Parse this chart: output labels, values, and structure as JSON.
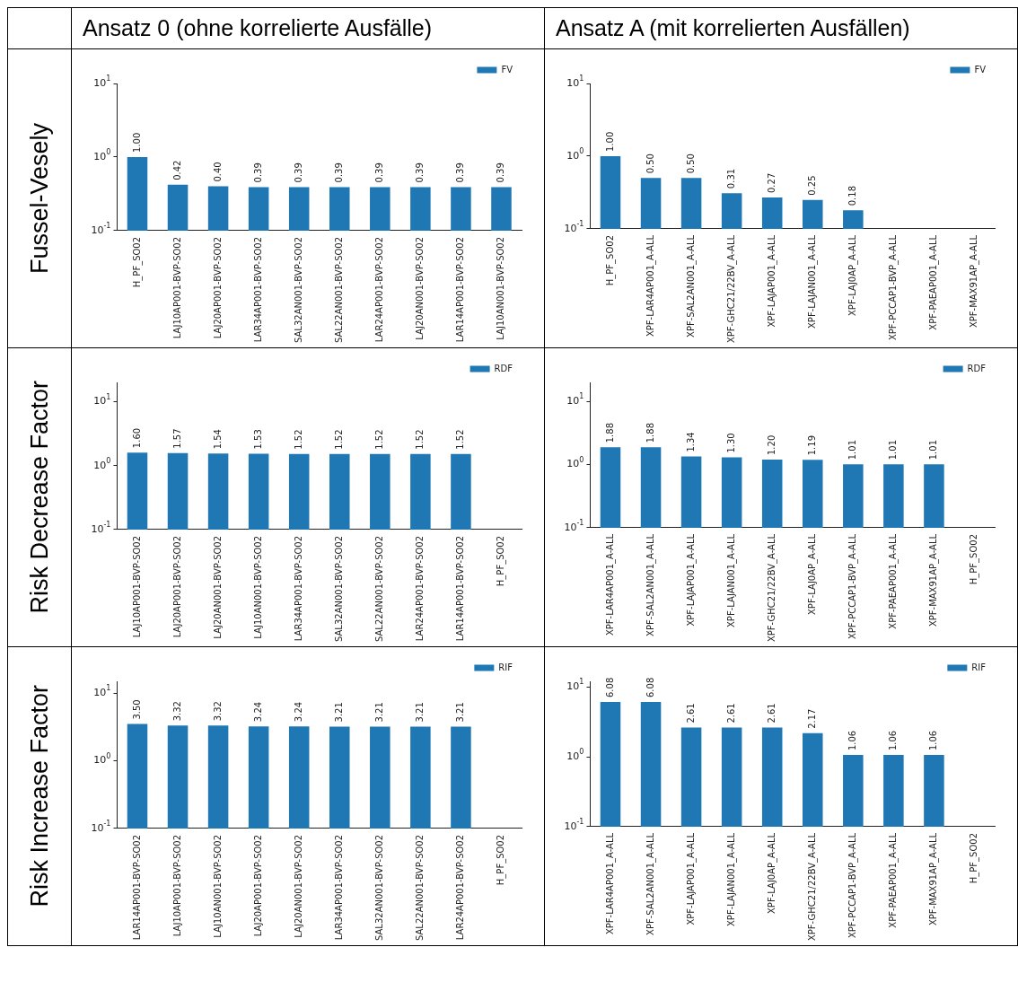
{
  "chart_data": [
    {
      "type": "bar",
      "title": "Ansatz 0 (ohne korrelierte Ausfälle)",
      "ylabel": "Fussel-Vesely",
      "categories": [
        "H_PF_SO02",
        "LAJ10AP001-BVP-SO02",
        "LAJ20AP001-BVP-SO02",
        "LAR34AP001-BVP-SO02",
        "SAL32AN001-BVP-SO02",
        "SAL22AN001-BVP-SO02",
        "LAR24AP001-BVP-SO02",
        "LAJ20AN001-BVP-SO02",
        "LAR14AP001-BVP-SO02",
        "LAJ10AN001-BVP-SO02"
      ],
      "series": [
        {
          "name": "FV",
          "color": "#1f77b4",
          "values": [
            1.0,
            0.42,
            0.4,
            0.39,
            0.39,
            0.39,
            0.39,
            0.39,
            0.39,
            0.39
          ],
          "value_labels": [
            "1.00",
            "0.42",
            "0.40",
            "0.39",
            "0.39",
            "0.39",
            "0.39",
            "0.39",
            "0.39",
            "0.39"
          ]
        }
      ],
      "log": true,
      "ylim": [
        0.1,
        10
      ],
      "yticks": [
        {
          "value": 0.1,
          "label": "10$^{-1}$"
        },
        {
          "value": 1,
          "label": "10$^{0}$"
        },
        {
          "value": 10,
          "label": "10$^{1}$"
        }
      ],
      "legend": "top right",
      "grid": false
    },
    {
      "type": "bar",
      "title": "Ansatz A (mit korrelierten Ausfällen)",
      "categories": [
        "H_PF_SO02",
        "XPF-LAR4AP001_A-ALL",
        "XPF-SAL2AN001_A-ALL",
        "XPF-GHC21/22BV_A-ALL",
        "XPF-LAJAP001_A-ALL",
        "XPF-LAJAN001_A-ALL",
        "XPF-LAJ0AP_A-ALL",
        "XPF-PCCAP1-BVP_A-ALL",
        "XPF-PAEAP001_A-ALL",
        "XPF-MAX91AP_A-ALL"
      ],
      "series": [
        {
          "name": "FV",
          "color": "#1f77b4",
          "values": [
            1.0,
            0.5,
            0.5,
            0.31,
            0.27,
            0.25,
            0.18,
            null,
            null,
            null
          ],
          "value_labels": [
            "1.00",
            "0.50",
            "0.50",
            "0.31",
            "0.27",
            "0.25",
            "0.18",
            null,
            null,
            null
          ]
        }
      ],
      "log": true,
      "ylim": [
        0.1,
        10
      ],
      "yticks": [
        {
          "value": 0.1,
          "label": "10$^{-1}$"
        },
        {
          "value": 1,
          "label": "10$^{0}$"
        },
        {
          "value": 10,
          "label": "10$^{1}$"
        }
      ],
      "legend": "top right",
      "grid": false
    },
    {
      "type": "bar",
      "ylabel": "Risk Decrease Factor",
      "categories": [
        "LAJ10AP001-BVP-SO02",
        "LAJ20AP001-BVP-SO02",
        "LAJ20AN001-BVP-SO02",
        "LAJ10AN001-BVP-SO02",
        "LAR34AP001-BVP-SO02",
        "SAL32AN001-BVP-SO02",
        "SAL22AN001-BVP-SO02",
        "LAR24AP001-BVP-SO02",
        "LAR14AP001-BVP-SO02",
        "H_PF_SO02"
      ],
      "series": [
        {
          "name": "RDF",
          "color": "#1f77b4",
          "values": [
            1.6,
            1.57,
            1.54,
            1.53,
            1.52,
            1.52,
            1.52,
            1.52,
            1.52,
            null
          ],
          "value_labels": [
            "1.60",
            "1.57",
            "1.54",
            "1.53",
            "1.52",
            "1.52",
            "1.52",
            "1.52",
            "1.52",
            null
          ]
        }
      ],
      "log": true,
      "ylim": [
        0.1,
        20
      ],
      "yticks": [
        {
          "value": 0.1,
          "label": "10$^{-1}$"
        },
        {
          "value": 1,
          "label": "10$^{0}$"
        },
        {
          "value": 10,
          "label": "10$^{1}$"
        }
      ],
      "legend": "top right",
      "grid": false
    },
    {
      "type": "bar",
      "categories": [
        "XPF-LAR4AP001_A-ALL",
        "XPF-SAL2AN001_A-ALL",
        "XPF-LAJAP001_A-ALL",
        "XPF-LAJAN001_A-ALL",
        "XPF-GHC21/22BV_A-ALL",
        "XPF-LAJ0AP_A-ALL",
        "XPF-PCCAP1-BVP_A-ALL",
        "XPF-PAEAP001_A-ALL",
        "XPF-MAX91AP_A-ALL",
        "H_PF_SO02"
      ],
      "series": [
        {
          "name": "RDF",
          "color": "#1f77b4",
          "values": [
            1.88,
            1.88,
            1.34,
            1.3,
            1.2,
            1.19,
            1.01,
            1.01,
            1.01,
            null
          ],
          "value_labels": [
            "1.88",
            "1.88",
            "1.34",
            "1.30",
            "1.20",
            "1.19",
            "1.01",
            "1.01",
            "1.01",
            null
          ]
        }
      ],
      "log": true,
      "ylim": [
        0.1,
        20
      ],
      "yticks": [
        {
          "value": 0.1,
          "label": "10$^{-1}$"
        },
        {
          "value": 1,
          "label": "10$^{0}$"
        },
        {
          "value": 10,
          "label": "10$^{1}$"
        }
      ],
      "legend": "top right",
      "grid": false
    },
    {
      "type": "bar",
      "ylabel": "Risk Increase Factor",
      "categories": [
        "LAR14AP001-BVP-SO02",
        "LAJ10AP001-BVP-SO02",
        "LAJ10AN001-BVP-SO02",
        "LAJ20AP001-BVP-SO02",
        "LAJ20AN001-BVP-SO02",
        "LAR34AP001-BVP-SO02",
        "SAL32AN001-BVP-SO02",
        "SAL22AN001-BVP-SO02",
        "LAR24AP001-BVP-SO02",
        "H_PF_SO02"
      ],
      "series": [
        {
          "name": "RIF",
          "color": "#1f77b4",
          "values": [
            3.5,
            3.32,
            3.32,
            3.24,
            3.24,
            3.21,
            3.21,
            3.21,
            3.21,
            null
          ],
          "value_labels": [
            "3.50",
            "3.32",
            "3.32",
            "3.24",
            "3.24",
            "3.21",
            "3.21",
            "3.21",
            "3.21",
            null
          ]
        }
      ],
      "log": true,
      "ylim": [
        0.1,
        15
      ],
      "yticks": [
        {
          "value": 0.1,
          "label": "10$^{-1}$"
        },
        {
          "value": 1,
          "label": "10$^{0}$"
        },
        {
          "value": 10,
          "label": "10$^{1}$"
        }
      ],
      "legend": "top right",
      "grid": false
    },
    {
      "type": "bar",
      "categories": [
        "XPF-LAR4AP001_A-ALL",
        "XPF-SAL2AN001_A-ALL",
        "XPF-LAJAP001_A-ALL",
        "XPF-LAJAN001_A-ALL",
        "XPF-LAJ0AP_A-ALL",
        "XPF-GHC21/22BV_A-ALL",
        "XPF-PCCAP1-BVP_A-ALL",
        "XPF-PAEAP001_A-ALL",
        "XPF-MAX91AP_A-ALL",
        "H_PF_SO02"
      ],
      "series": [
        {
          "name": "RIF",
          "color": "#1f77b4",
          "values": [
            6.08,
            6.08,
            2.61,
            2.61,
            2.61,
            2.17,
            1.06,
            1.06,
            1.06,
            null
          ],
          "value_labels": [
            "6.08",
            "6.08",
            "2.61",
            "2.61",
            "2.61",
            "2.17",
            "1.06",
            "1.06",
            "1.06",
            null
          ]
        }
      ],
      "log": true,
      "ylim": [
        0.1,
        12
      ],
      "yticks": [
        {
          "value": 0.1,
          "label": "10$^{-1}$"
        },
        {
          "value": 1,
          "label": "10$^{0}$"
        },
        {
          "value": 10,
          "label": "10$^{1}$"
        }
      ],
      "legend": "top right",
      "grid": false
    }
  ]
}
